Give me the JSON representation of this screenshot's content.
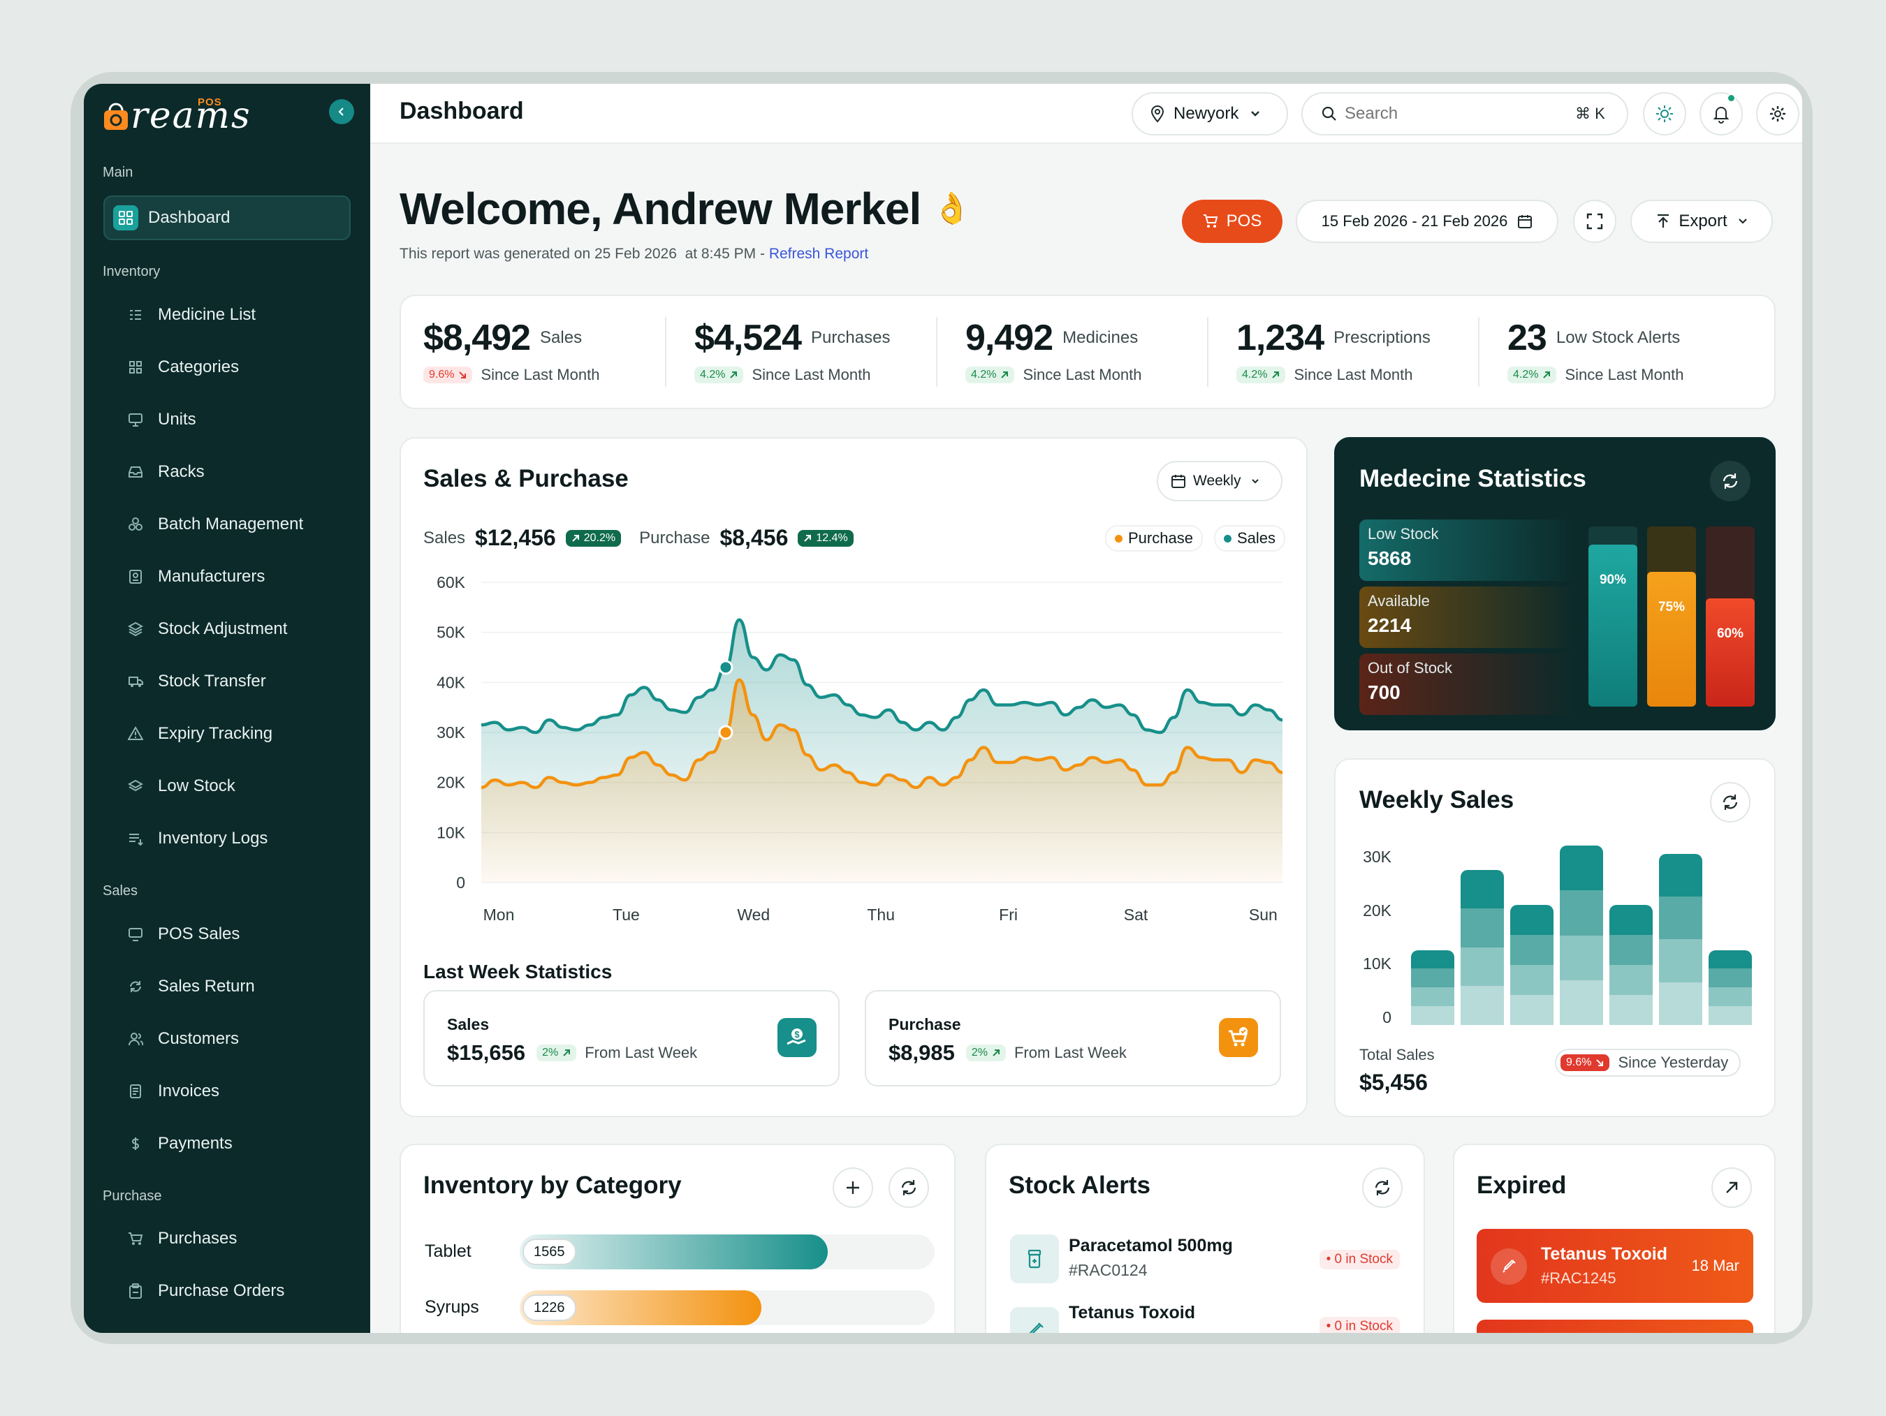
{
  "brand": {
    "name": "reams",
    "tag": "POS"
  },
  "sidebar": {
    "sections": {
      "main": "Main",
      "inventory": "Inventory",
      "sales": "Sales",
      "purchase": "Purchase"
    },
    "items": [
      {
        "label": "Dashboard",
        "icon": "grid-icon"
      },
      {
        "label": "Medicine List",
        "icon": "list-icon"
      },
      {
        "label": "Categories",
        "icon": "categories-icon"
      },
      {
        "label": "Units",
        "icon": "monitor-icon"
      },
      {
        "label": "Racks",
        "icon": "inbox-icon"
      },
      {
        "label": "Batch Management",
        "icon": "boxes-icon"
      },
      {
        "label": "Manufacturers",
        "icon": "badge-icon"
      },
      {
        "label": "Stock Adjustment",
        "icon": "layers-icon"
      },
      {
        "label": "Stock Transfer",
        "icon": "truck-icon"
      },
      {
        "label": "Expiry Tracking",
        "icon": "warning-icon"
      },
      {
        "label": "Low Stock",
        "icon": "stack-icon"
      },
      {
        "label": "Inventory Logs",
        "icon": "log-icon"
      },
      {
        "label": "POS Sales",
        "icon": "monitor-icon"
      },
      {
        "label": "Sales Return",
        "icon": "refresh-icon"
      },
      {
        "label": "Customers",
        "icon": "users-icon"
      },
      {
        "label": "Invoices",
        "icon": "invoice-icon"
      },
      {
        "label": "Payments",
        "icon": "dollar-icon"
      },
      {
        "label": "Purchases",
        "icon": "cart-icon"
      },
      {
        "label": "Purchase Orders",
        "icon": "clipboard-icon"
      }
    ]
  },
  "header": {
    "title": "Dashboard",
    "location": "Newyork",
    "search_placeholder": "Search",
    "shortcut": "⌘ K"
  },
  "welcome": {
    "title": "Welcome, Andrew Merkel",
    "emoji": "👌",
    "report_text": "This report was generated on 25 Feb 2026  at 8:45 PM - ",
    "refresh_link": "Refresh Report",
    "pos_label": "POS",
    "date_range": "15 Feb 2026 - 21 Feb 2026",
    "export_label": "Export"
  },
  "kpis": [
    {
      "value": "$8,492",
      "label": "Sales",
      "change": "9.6%",
      "dir": "down",
      "since": "Since Last Month"
    },
    {
      "value": "$4,524",
      "label": "Purchases",
      "change": "4.2%",
      "dir": "up",
      "since": "Since Last Month"
    },
    {
      "value": "9,492",
      "label": "Medicines",
      "change": "4.2%",
      "dir": "up",
      "since": "Since Last Month"
    },
    {
      "value": "1,234",
      "label": "Prescriptions",
      "change": "4.2%",
      "dir": "up",
      "since": "Since Last Month"
    },
    {
      "value": "23",
      "label": "Low Stock Alerts",
      "change": "4.2%",
      "dir": "up",
      "since": "Since Last Month"
    }
  ],
  "sales_purchase": {
    "title": "Sales & Purchase",
    "period": "Weekly",
    "sales_label": "Sales",
    "sales_value": "$12,456",
    "sales_change": "20.2%",
    "purchase_label": "Purchase",
    "purchase_value": "$8,456",
    "purchase_change": "12.4%",
    "legend": [
      "Purchase",
      "Sales"
    ],
    "colors": {
      "sales": "#178f8a",
      "purchase": "#f3920f"
    },
    "last_week_title": "Last Week Statistics",
    "last_week": [
      {
        "label": "Sales",
        "value": "$15,656",
        "change": "2%",
        "since": "From Last Week"
      },
      {
        "label": "Purchase",
        "value": "$8,985",
        "change": "2%",
        "since": "From Last Week"
      }
    ]
  },
  "chart_data": [
    {
      "type": "area",
      "x_ticks": [
        "Mon",
        "Tue",
        "Wed",
        "Thu",
        "Fri",
        "Sat",
        "Sun"
      ],
      "y_ticks": [
        "60K",
        "50K",
        "40K",
        "30K",
        "20K",
        "10K",
        "0"
      ],
      "ylim": [
        0,
        60000
      ],
      "series": [
        {
          "name": "Sales",
          "values": [
            31500,
            32000,
            30500,
            31000,
            30000,
            32500,
            31000,
            30500,
            31500,
            33000,
            33500,
            37500,
            39000,
            36500,
            34500,
            34000,
            37000,
            38500,
            43000,
            52500,
            45000,
            42500,
            45500,
            44500,
            39500,
            37000,
            37500,
            35500,
            33500,
            33000,
            34500,
            32000,
            30500,
            32000,
            30500,
            33000,
            36500,
            38500,
            35500,
            35500,
            36000,
            35500,
            36000,
            33500,
            35000,
            36500,
            35000,
            35500,
            33500,
            30500,
            30000,
            33000,
            38500,
            36000,
            35500,
            35500,
            33500,
            35500,
            34500,
            32500
          ]
        },
        {
          "name": "Purchase",
          "values": [
            19000,
            20500,
            19500,
            20000,
            19000,
            21000,
            20000,
            19500,
            20000,
            21000,
            21500,
            25000,
            26000,
            23500,
            21500,
            20500,
            24500,
            26000,
            30000,
            40500,
            33500,
            28500,
            31500,
            30500,
            25500,
            22500,
            23500,
            22000,
            20000,
            19500,
            21500,
            20500,
            19000,
            21000,
            19500,
            21000,
            24500,
            27000,
            24000,
            24000,
            25000,
            24500,
            25000,
            22500,
            23500,
            25000,
            24000,
            24500,
            22500,
            19500,
            19500,
            22000,
            27000,
            25000,
            24500,
            24500,
            22000,
            24500,
            24000,
            22000
          ]
        }
      ]
    },
    {
      "type": "bar",
      "title": "Weekly  Sales",
      "stacked": true,
      "y_ticks": [
        "30K",
        "20K",
        "10K",
        "0"
      ],
      "ylim": [
        0,
        30000
      ],
      "values": [
        14000,
        29000,
        22500,
        33500,
        22500,
        32000,
        14000
      ],
      "total_label": "Total Sales",
      "total_value": "$5,456",
      "change": "9.6%",
      "since": "Since Yesterday"
    },
    {
      "type": "bar",
      "title": "Medecine Statistics",
      "values": [
        90,
        75,
        60
      ],
      "legend": [
        {
          "label": "Low Stock",
          "value": "5868",
          "color": "#178f8a"
        },
        {
          "label": "Available",
          "value": "2214",
          "color": "#f3920f"
        },
        {
          "label": "Out of Stock",
          "value": "700",
          "color": "#e23a1d"
        }
      ],
      "bar_labels": [
        "90%",
        "75%",
        "60%"
      ]
    },
    {
      "type": "bar",
      "title": "Inventory by Category",
      "orientation": "horizontal",
      "categories": [
        "Tablet",
        "Syrups"
      ],
      "values": [
        1565,
        1226
      ]
    }
  ],
  "stock_alerts": {
    "title": "Stock Alerts",
    "items": [
      {
        "name": "Paracetamol 500mg",
        "id": "#RAC0124",
        "status": "• 0 in Stock"
      },
      {
        "name": "Tetanus Toxoid",
        "id": "",
        "status": "• 0 in Stock"
      }
    ]
  },
  "expired": {
    "title": "Expired",
    "items": [
      {
        "name": "Tetanus Toxoid",
        "id": "#RAC1245",
        "date": "18 Mar"
      }
    ]
  }
}
